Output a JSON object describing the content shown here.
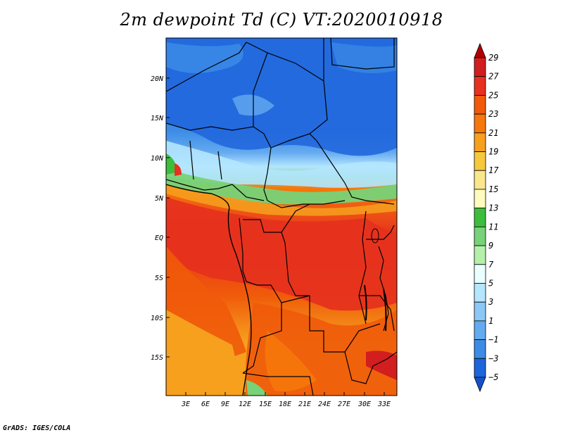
{
  "title": "2m dewpoint Td (C) VT:2020010918",
  "credit": "GrADS: IGES/COLA",
  "axes": {
    "lat_labels": [
      "20N",
      "15N",
      "10N",
      "5N",
      "EQ",
      "5S",
      "10S",
      "15S"
    ],
    "lon_labels": [
      "3E",
      "6E",
      "9E",
      "12E",
      "15E",
      "18E",
      "21E",
      "24E",
      "27E",
      "30E",
      "33E"
    ]
  },
  "colorbar": {
    "labels": [
      "29",
      "27",
      "25",
      "23",
      "21",
      "19",
      "17",
      "15",
      "13",
      "11",
      "9",
      "7",
      "5",
      "3",
      "1",
      "−1",
      "−3",
      "−5"
    ],
    "colors": [
      "#b40000",
      "#d21e1e",
      "#e6321e",
      "#f05a0a",
      "#f6780a",
      "#f6a01e",
      "#f6c83c",
      "#fae68c",
      "#fffabe",
      "#3cbe3c",
      "#78d278",
      "#b4f0aa",
      "#eaffff",
      "#b4e6ff",
      "#8cc8f6",
      "#64aaf0",
      "#3c8ce6",
      "#1e64dc",
      "#1450c8"
    ]
  },
  "map_data": {
    "variable": "2m dewpoint",
    "units": "C",
    "valid_time": "2020010918"
  }
}
